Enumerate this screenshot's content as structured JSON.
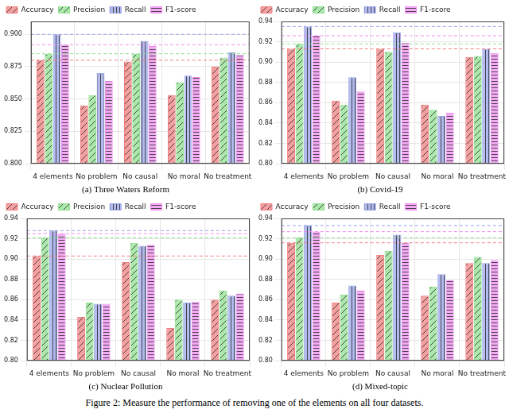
{
  "caption": "Figure 2: Measure the performance of removing one of the elements on all four datasets.",
  "chart_data": [
    {
      "type": "bar",
      "title": "(a) Three Waters Reform",
      "categories": [
        "4 elements",
        "No problem",
        "No causal",
        "No moral",
        "No treatment"
      ],
      "series": [
        {
          "name": "Accuracy",
          "color": "#f08080",
          "values": [
            0.88,
            0.845,
            0.879,
            0.853,
            0.875
          ]
        },
        {
          "name": "Precision",
          "color": "#90e090",
          "values": [
            0.885,
            0.853,
            0.885,
            0.863,
            0.882
          ]
        },
        {
          "name": "Recall",
          "color": "#9aa4e8",
          "values": [
            0.9,
            0.87,
            0.895,
            0.868,
            0.886
          ]
        },
        {
          "name": "F1-score",
          "color": "#f08ef0",
          "values": [
            0.892,
            0.864,
            0.891,
            0.867,
            0.884
          ]
        }
      ],
      "ylim": [
        0.8,
        0.91
      ],
      "yticks": [
        {
          "value": 0.8,
          "label": "0.800"
        },
        {
          "value": 0.825,
          "label": "0.825"
        },
        {
          "value": 0.85,
          "label": "0.850"
        },
        {
          "value": 0.875,
          "label": "0.875"
        },
        {
          "value": 0.9,
          "label": "0.900"
        }
      ],
      "grid": true,
      "legend": "top"
    },
    {
      "type": "bar",
      "title": "(b) Covid-19",
      "categories": [
        "4 elements",
        "No problem",
        "No causal",
        "No moral",
        "No treatment"
      ],
      "series": [
        {
          "name": "Accuracy",
          "color": "#f08080",
          "values": [
            0.913,
            0.862,
            0.913,
            0.858,
            0.905
          ]
        },
        {
          "name": "Precision",
          "color": "#90e090",
          "values": [
            0.918,
            0.858,
            0.91,
            0.853,
            0.906
          ]
        },
        {
          "name": "Recall",
          "color": "#9aa4e8",
          "values": [
            0.935,
            0.885,
            0.929,
            0.847,
            0.913
          ]
        },
        {
          "name": "F1-score",
          "color": "#f08ef0",
          "values": [
            0.926,
            0.871,
            0.919,
            0.85,
            0.909
          ]
        }
      ],
      "ylim": [
        0.8,
        0.94
      ],
      "yticks": [
        {
          "value": 0.8,
          "label": "0.80"
        },
        {
          "value": 0.82,
          "label": "0.82"
        },
        {
          "value": 0.84,
          "label": "0.84"
        },
        {
          "value": 0.86,
          "label": "0.86"
        },
        {
          "value": 0.88,
          "label": "0.88"
        },
        {
          "value": 0.9,
          "label": "0.90"
        },
        {
          "value": 0.92,
          "label": "0.92"
        },
        {
          "value": 0.94,
          "label": "0.94"
        }
      ],
      "grid": true,
      "legend": "top"
    },
    {
      "type": "bar",
      "title": "(c) Nuclear Pollution",
      "categories": [
        "4 elements",
        "No problem",
        "No causal",
        "No moral",
        "No treatment"
      ],
      "series": [
        {
          "name": "Accuracy",
          "color": "#f08080",
          "values": [
            0.903,
            0.843,
            0.897,
            0.832,
            0.86
          ]
        },
        {
          "name": "Precision",
          "color": "#90e090",
          "values": [
            0.921,
            0.857,
            0.916,
            0.86,
            0.869
          ]
        },
        {
          "name": "Recall",
          "color": "#9aa4e8",
          "values": [
            0.928,
            0.856,
            0.913,
            0.857,
            0.864
          ]
        },
        {
          "name": "F1-score",
          "color": "#f08ef0",
          "values": [
            0.925,
            0.856,
            0.914,
            0.858,
            0.866
          ]
        }
      ],
      "ylim": [
        0.8,
        0.94
      ],
      "yticks": [
        {
          "value": 0.8,
          "label": "0.80"
        },
        {
          "value": 0.82,
          "label": "0.82"
        },
        {
          "value": 0.84,
          "label": "0.84"
        },
        {
          "value": 0.86,
          "label": "0.86"
        },
        {
          "value": 0.88,
          "label": "0.88"
        },
        {
          "value": 0.9,
          "label": "0.90"
        },
        {
          "value": 0.92,
          "label": "0.92"
        },
        {
          "value": 0.94,
          "label": "0.94"
        }
      ],
      "grid": true,
      "legend": "top"
    },
    {
      "type": "bar",
      "title": "(d) Mixed-topic",
      "categories": [
        "4 elements",
        "No problem",
        "No causal",
        "No moral",
        "No treatment"
      ],
      "series": [
        {
          "name": "Accuracy",
          "color": "#f08080",
          "values": [
            0.916,
            0.857,
            0.904,
            0.864,
            0.896
          ]
        },
        {
          "name": "Precision",
          "color": "#90e090",
          "values": [
            0.921,
            0.865,
            0.908,
            0.873,
            0.902
          ]
        },
        {
          "name": "Recall",
          "color": "#9aa4e8",
          "values": [
            0.933,
            0.874,
            0.924,
            0.885,
            0.896
          ]
        },
        {
          "name": "F1-score",
          "color": "#f08ef0",
          "values": [
            0.927,
            0.869,
            0.916,
            0.879,
            0.899
          ]
        }
      ],
      "ylim": [
        0.8,
        0.94
      ],
      "yticks": [
        {
          "value": 0.8,
          "label": "0.80"
        },
        {
          "value": 0.82,
          "label": "0.82"
        },
        {
          "value": 0.84,
          "label": "0.84"
        },
        {
          "value": 0.86,
          "label": "0.86"
        },
        {
          "value": 0.88,
          "label": "0.88"
        },
        {
          "value": 0.9,
          "label": "0.90"
        },
        {
          "value": 0.92,
          "label": "0.92"
        },
        {
          "value": 0.94,
          "label": "0.94"
        }
      ],
      "grid": true,
      "legend": "top"
    }
  ]
}
